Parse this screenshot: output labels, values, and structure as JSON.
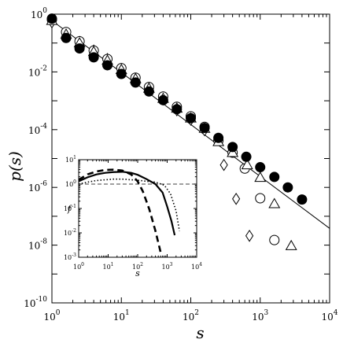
{
  "chart_data": [
    {
      "type": "scatter",
      "scale": "log-log",
      "xlabel": "s",
      "ylabel": "p(s)",
      "xlim": [
        1,
        10000
      ],
      "ylim": [
        1e-10,
        1
      ],
      "x_ticks": [
        {
          "value": 1,
          "base": "10",
          "exp": "0"
        },
        {
          "value": 10,
          "base": "10",
          "exp": "1"
        },
        {
          "value": 100,
          "base": "10",
          "exp": "2"
        },
        {
          "value": 1000,
          "base": "10",
          "exp": "3"
        },
        {
          "value": 10000,
          "base": "10",
          "exp": "4"
        }
      ],
      "y_ticks": [
        {
          "value": 1,
          "base": "10",
          "exp": "0"
        },
        {
          "value": 0.01,
          "base": "10",
          "exp": "-2"
        },
        {
          "value": 0.0001,
          "base": "10",
          "exp": "-4"
        },
        {
          "value": 1e-06,
          "base": "10",
          "exp": "-6"
        },
        {
          "value": 1e-08,
          "base": "10",
          "exp": "-8"
        },
        {
          "value": 1e-10,
          "base": "10",
          "exp": "-10"
        }
      ],
      "grid": false,
      "fit_line": {
        "style": "solid",
        "color": "#000000",
        "x": [
          1,
          10000
        ],
        "y": [
          0.6,
          3.8e-08
        ]
      },
      "series": [
        {
          "marker": "diamond",
          "filled": false,
          "x": [
            1,
            1.6,
            2.5,
            4,
            6.3,
            10,
            16,
            25,
            40,
            63,
            100,
            158,
            300,
            450,
            700
          ],
          "y": [
            0.52,
            0.2,
            0.11,
            0.055,
            0.028,
            0.0125,
            0.0054,
            0.0024,
            0.0011,
            0.00047,
            0.00022,
            9.5e-05,
            6e-06,
            4e-07,
            2.1e-08
          ]
        },
        {
          "marker": "circle",
          "filled": false,
          "x": [
            1,
            1.6,
            2.5,
            4,
            6.3,
            10,
            16,
            25,
            40,
            63,
            100,
            158,
            250,
            400,
            600,
            1000,
            1600
          ],
          "y": [
            0.65,
            0.24,
            0.115,
            0.055,
            0.028,
            0.0135,
            0.0063,
            0.003,
            0.0014,
            0.00062,
            0.00029,
            0.000125,
            4.2e-05,
            1.6e-05,
            4.5e-06,
            4.2e-07,
            1.5e-08
          ]
        },
        {
          "marker": "triangle",
          "filled": false,
          "x": [
            1,
            1.6,
            2.5,
            4,
            6.3,
            10,
            16,
            25,
            40,
            63,
            100,
            158,
            250,
            400,
            650,
            1000,
            1600,
            2800
          ],
          "y": [
            0.6,
            0.2,
            0.1,
            0.05,
            0.025,
            0.012,
            0.0058,
            0.0027,
            0.0012,
            0.00055,
            0.00025,
            0.00011,
            3.8e-05,
            1.6e-05,
            6e-06,
            2.2e-06,
            2.7e-07,
            9.5e-09
          ]
        },
        {
          "marker": "circle",
          "filled": true,
          "x": [
            1,
            1.6,
            2.5,
            4,
            6.3,
            10,
            16,
            25,
            40,
            63,
            100,
            158,
            250,
            400,
            630,
            1000,
            1600,
            2500,
            4000
          ],
          "y": [
            0.7,
            0.15,
            0.065,
            0.032,
            0.017,
            0.0085,
            0.0043,
            0.0021,
            0.00105,
            0.00051,
            0.00025,
            0.000115,
            5.2e-05,
            2.5e-05,
            1.15e-05,
            5e-06,
            2.3e-06,
            1e-06,
            3.8e-07
          ]
        }
      ]
    },
    {
      "type": "line",
      "scale": "log-log",
      "role": "inset",
      "xlabel": "s",
      "ylabel": "f",
      "xlim": [
        1,
        10000
      ],
      "ylim": [
        0.001,
        10
      ],
      "x_ticks": [
        {
          "value": 1,
          "base": "10",
          "exp": "0"
        },
        {
          "value": 10,
          "base": "10",
          "exp": "1"
        },
        {
          "value": 100,
          "base": "10",
          "exp": "2"
        },
        {
          "value": 1000,
          "base": "10",
          "exp": "3"
        },
        {
          "value": 10000,
          "base": "10",
          "exp": "4"
        }
      ],
      "y_ticks": [
        {
          "value": 0.001,
          "base": "10",
          "exp": "-3"
        },
        {
          "value": 0.01,
          "base": "10",
          "exp": "-2"
        },
        {
          "value": 0.1,
          "base": "10",
          "exp": "-1"
        },
        {
          "value": 1,
          "base": "10",
          "exp": "0"
        },
        {
          "value": 10,
          "base": "10",
          "exp": "1"
        }
      ],
      "reference_line": {
        "y": 1,
        "style": "dashed"
      },
      "series": [
        {
          "style": "dashed-thick",
          "x": [
            1,
            2,
            4,
            8,
            15,
            30,
            60,
            100,
            150,
            250,
            400,
            600
          ],
          "y": [
            1.5,
            2.5,
            3.3,
            3.8,
            3.9,
            3.6,
            2.5,
            1.3,
            0.5,
            0.09,
            0.012,
            0.0016
          ]
        },
        {
          "style": "solid-thick",
          "x": [
            1,
            2,
            4,
            8,
            15,
            30,
            60,
            100,
            200,
            400,
            700,
            1000,
            1400,
            1800
          ],
          "y": [
            1.3,
            1.9,
            2.5,
            2.9,
            3.1,
            3.2,
            2.9,
            2.4,
            1.6,
            1,
            0.45,
            0.12,
            0.03,
            0.008
          ]
        },
        {
          "style": "dotted",
          "x": [
            1,
            2,
            4,
            8,
            15,
            30,
            60,
            100,
            200,
            400,
            800,
            1300,
            2000,
            2600
          ],
          "y": [
            1,
            1.2,
            1.4,
            1.5,
            1.6,
            1.6,
            1.5,
            1.45,
            1.3,
            1.2,
            0.9,
            0.4,
            0.08,
            0.012
          ]
        }
      ]
    }
  ]
}
